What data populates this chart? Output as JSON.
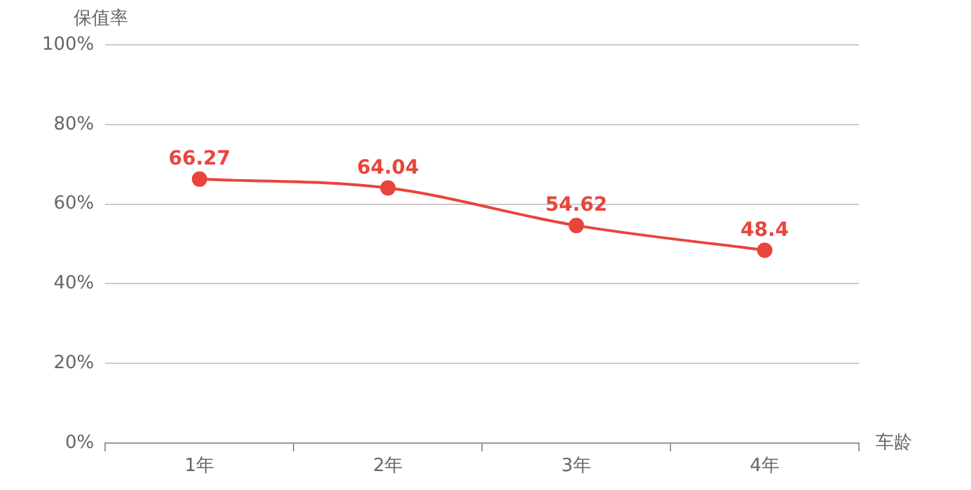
{
  "chart_data": {
    "type": "line",
    "ylabel": "保值率",
    "xlabel": "车龄",
    "categories": [
      "1年",
      "2年",
      "3年",
      "4年"
    ],
    "series": [
      {
        "color": "#e8453c",
        "values": [
          66.27,
          64.04,
          54.62,
          48.4
        ]
      }
    ],
    "ylim": [
      0,
      100
    ],
    "yticks": [
      {
        "value": 0,
        "label": "0%"
      },
      {
        "value": 20,
        "label": "20%"
      },
      {
        "value": 40,
        "label": "40%"
      },
      {
        "value": 60,
        "label": "60%"
      },
      {
        "value": 80,
        "label": "80%"
      },
      {
        "value": 100,
        "label": "100%"
      }
    ],
    "grid": "y",
    "legend": false,
    "marker": "circle",
    "line_style": "solid",
    "data_labels": true
  }
}
